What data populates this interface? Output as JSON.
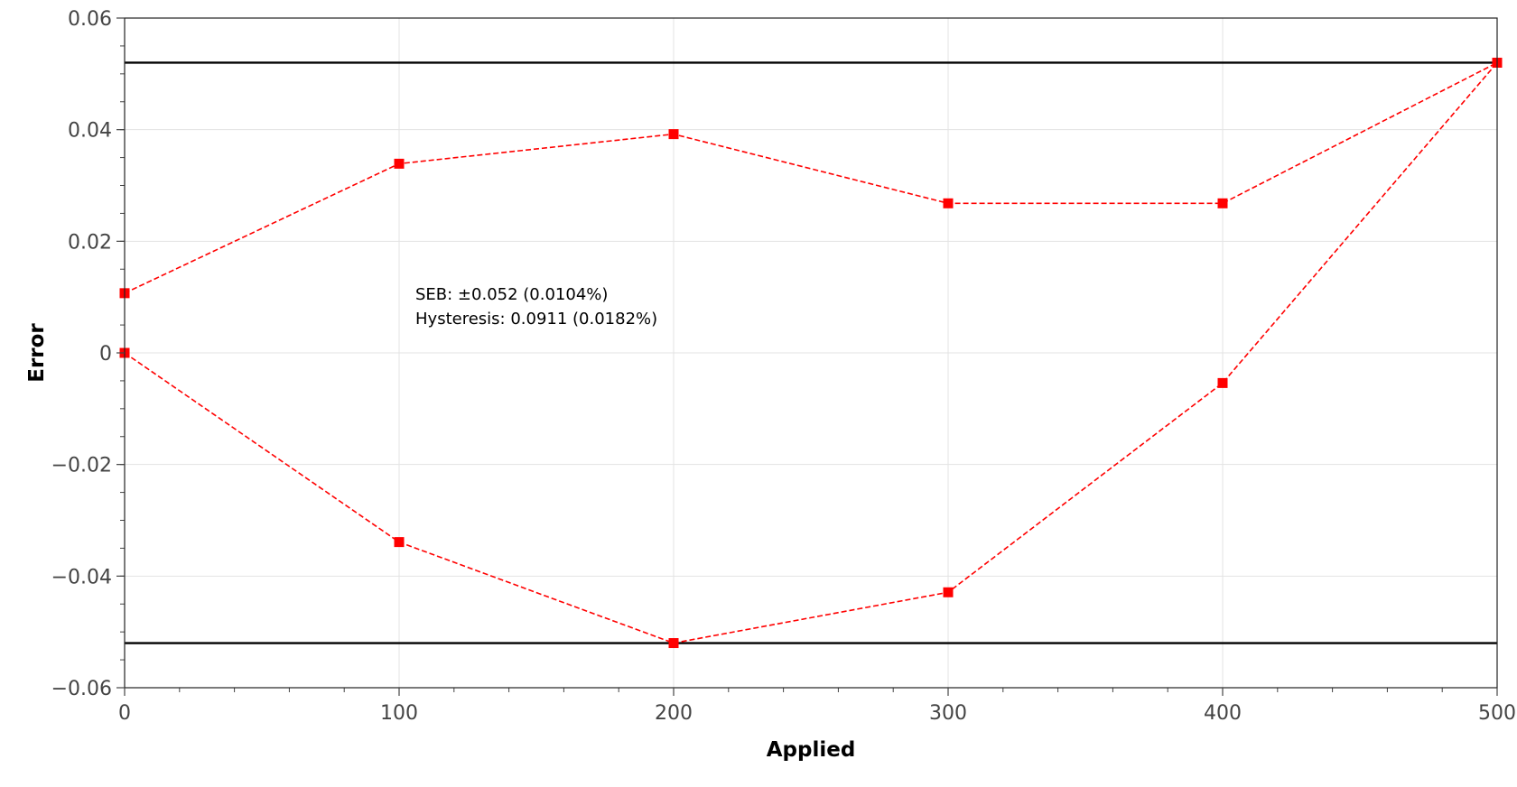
{
  "chart_data": {
    "type": "line",
    "xlabel": "Applied",
    "ylabel": "Error",
    "xlim": [
      0,
      500
    ],
    "ylim": [
      -0.06,
      0.06
    ],
    "grid": true,
    "x_ticks": [
      0,
      100,
      200,
      300,
      400,
      500
    ],
    "x_tick_labels": [
      "0",
      "100",
      "200",
      "300",
      "400",
      "500"
    ],
    "y_ticks": [
      0.06,
      0.04,
      0.02,
      0,
      -0.02,
      -0.04,
      -0.06
    ],
    "y_tick_labels": [
      "0.06",
      "0.04",
      "0.02",
      "0",
      "−0.02",
      "−0.04",
      "−0.06"
    ],
    "series": [
      {
        "x": [
          0,
          100,
          200,
          300,
          400,
          500
        ],
        "values": [
          0.0107,
          0.0339,
          0.0392,
          0.0268,
          0.0268,
          0.052
        ],
        "color": "#ff0000",
        "style": "dashed",
        "marker": "square"
      },
      {
        "x": [
          0,
          100,
          200,
          300,
          400,
          500
        ],
        "values": [
          0.0,
          -0.0339,
          -0.052,
          -0.0429,
          -0.0054,
          0.052
        ],
        "color": "#ff0000",
        "style": "dashed",
        "marker": "square"
      }
    ],
    "reference_lines": [
      {
        "y": 0.052,
        "color": "#000000"
      },
      {
        "y": -0.052,
        "color": "#000000"
      }
    ],
    "annotations": [
      "SEB: ±0.052 (0.0104%)",
      "Hysteresis: 0.0911 (0.0182%)"
    ]
  }
}
